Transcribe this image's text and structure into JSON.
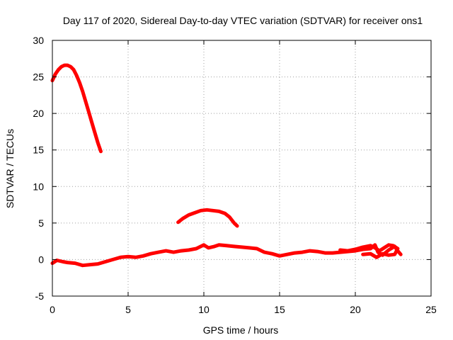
{
  "chart_data": {
    "type": "line",
    "title": "Day 117 of 2020, Sidereal Day-to-day VTEC variation (SDTVAR) for receiver ons1",
    "xlabel": "GPS time / hours",
    "ylabel": "SDTVAR / TECUs",
    "xlim": [
      0,
      25
    ],
    "ylim": [
      -5,
      30
    ],
    "xticks": [
      0,
      5,
      10,
      15,
      20,
      25
    ],
    "yticks": [
      -5,
      0,
      5,
      10,
      15,
      20,
      25,
      30
    ],
    "grid": true,
    "color": "#ff0000",
    "series": [
      {
        "name": "segment-early",
        "points": [
          [
            0.0,
            24.5
          ],
          [
            0.2,
            25.4
          ],
          [
            0.4,
            26.0
          ],
          [
            0.6,
            26.4
          ],
          [
            0.8,
            26.6
          ],
          [
            1.0,
            26.6
          ],
          [
            1.2,
            26.4
          ],
          [
            1.4,
            26.0
          ],
          [
            1.6,
            25.2
          ],
          [
            1.8,
            24.2
          ],
          [
            2.0,
            23.0
          ],
          [
            2.2,
            21.6
          ],
          [
            2.4,
            20.2
          ],
          [
            2.6,
            18.8
          ],
          [
            2.8,
            17.4
          ],
          [
            3.0,
            16.0
          ],
          [
            3.2,
            14.8
          ]
        ]
      },
      {
        "name": "segment-midday",
        "points": [
          [
            8.3,
            5.1
          ],
          [
            8.6,
            5.6
          ],
          [
            9.0,
            6.1
          ],
          [
            9.4,
            6.4
          ],
          [
            9.8,
            6.7
          ],
          [
            10.2,
            6.8
          ],
          [
            10.6,
            6.7
          ],
          [
            11.0,
            6.6
          ],
          [
            11.4,
            6.3
          ],
          [
            11.7,
            5.8
          ],
          [
            12.0,
            5.0
          ],
          [
            12.2,
            4.6
          ]
        ]
      },
      {
        "name": "segment-low",
        "points": [
          [
            0.0,
            -0.5
          ],
          [
            0.3,
            -0.1
          ],
          [
            0.7,
            -0.3
          ],
          [
            1.0,
            -0.4
          ],
          [
            1.5,
            -0.5
          ],
          [
            2.0,
            -0.8
          ],
          [
            2.5,
            -0.7
          ],
          [
            3.0,
            -0.6
          ],
          [
            3.5,
            -0.3
          ],
          [
            4.0,
            0.0
          ],
          [
            4.5,
            0.3
          ],
          [
            5.0,
            0.4
          ],
          [
            5.5,
            0.3
          ],
          [
            6.0,
            0.5
          ],
          [
            6.5,
            0.8
          ],
          [
            7.0,
            1.0
          ],
          [
            7.5,
            1.2
          ],
          [
            8.0,
            1.0
          ],
          [
            8.5,
            1.2
          ],
          [
            9.0,
            1.3
          ],
          [
            9.5,
            1.5
          ],
          [
            10.0,
            2.0
          ],
          [
            10.3,
            1.6
          ],
          [
            10.7,
            1.8
          ],
          [
            11.0,
            2.0
          ],
          [
            11.5,
            1.9
          ],
          [
            12.0,
            1.8
          ],
          [
            12.5,
            1.7
          ],
          [
            13.0,
            1.6
          ],
          [
            13.5,
            1.5
          ],
          [
            14.0,
            1.0
          ],
          [
            14.5,
            0.8
          ],
          [
            15.0,
            0.5
          ],
          [
            15.5,
            0.7
          ],
          [
            16.0,
            0.9
          ],
          [
            16.5,
            1.0
          ],
          [
            17.0,
            1.2
          ],
          [
            17.5,
            1.1
          ],
          [
            18.0,
            0.9
          ],
          [
            18.5,
            0.9
          ],
          [
            19.0,
            1.0
          ],
          [
            19.5,
            1.1
          ],
          [
            20.0,
            1.2
          ],
          [
            20.5,
            1.4
          ],
          [
            21.0,
            1.5
          ],
          [
            21.3,
            2.0
          ],
          [
            21.5,
            1.0
          ],
          [
            21.8,
            0.6
          ],
          [
            22.2,
            1.3
          ],
          [
            22.6,
            1.8
          ],
          [
            22.8,
            1.2
          ],
          [
            23.0,
            0.7
          ]
        ]
      },
      {
        "name": "segment-late",
        "points": [
          [
            19.0,
            1.3
          ],
          [
            19.5,
            1.2
          ],
          [
            20.0,
            1.4
          ],
          [
            20.5,
            1.7
          ],
          [
            21.0,
            1.9
          ],
          [
            21.3,
            1.6
          ],
          [
            21.6,
            1.2
          ],
          [
            21.9,
            1.6
          ],
          [
            22.2,
            2.0
          ],
          [
            22.5,
            1.9
          ],
          [
            22.8,
            1.5
          ],
          [
            22.6,
            0.7
          ],
          [
            22.2,
            0.6
          ],
          [
            21.8,
            0.8
          ],
          [
            21.4,
            0.3
          ],
          [
            21.0,
            0.8
          ],
          [
            20.5,
            0.7
          ]
        ]
      }
    ]
  }
}
